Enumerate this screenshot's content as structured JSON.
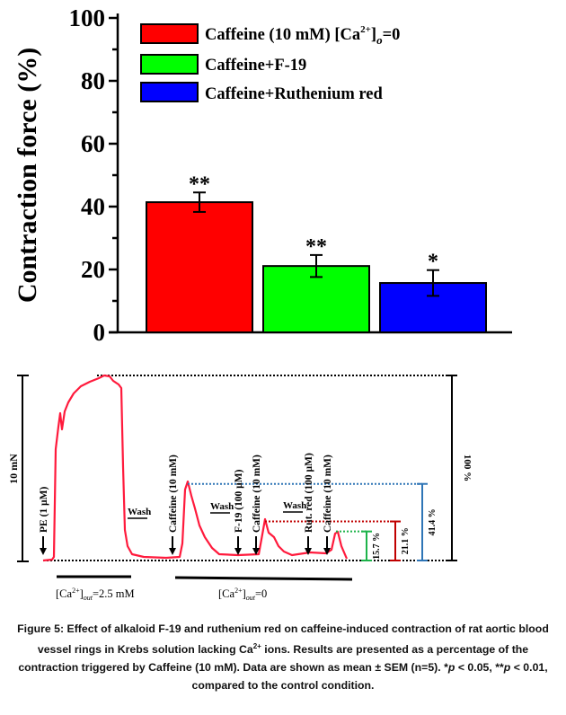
{
  "chart_data": [
    {
      "type": "bar",
      "ylabel": "Contraction force (%)",
      "ylim": [
        0,
        100
      ],
      "yticks": [
        "0",
        "20",
        "40",
        "60",
        "80",
        "100"
      ],
      "legend_position": "top-right",
      "series": [
        {
          "name": "Caffeine (10 mM) [Ca2+]o=0",
          "value": 41.4,
          "error": 3.1,
          "significance": "**",
          "color": "#ff0000"
        },
        {
          "name": "Caffeine+F-19",
          "value": 21.1,
          "error": 3.5,
          "significance": "**",
          "color": "#00ff00"
        },
        {
          "name": "Caffeine+Ruthenium red",
          "value": 15.7,
          "error": 4.1,
          "significance": "*",
          "color": "#0000ff"
        }
      ],
      "legend_text": {
        "l1_main": "Caffeine (10 mM) [Ca",
        "l1_sup": "2+",
        "l1_close": "]",
        "l1_sub": "o",
        "l1_end": "=0",
        "l2": "Caffeine+F-19",
        "l3": "Caffeine+Ruthenium red"
      }
    },
    {
      "type": "line",
      "trace_color": "#ff1a3c",
      "scale_bar_label": "10 mN",
      "full_scale_label": "100 %",
      "events": [
        "PE (1 µM)",
        "Caffeine (10 mM)",
        "F-19 (100 µM)",
        "Caffeine (10 mM)",
        "Rut. red (100 µM)",
        "Caffeine (10 mM)"
      ],
      "wash_label": "Wash",
      "measurements": [
        {
          "label": "15.7 %",
          "value": 15.7,
          "color": "#1db34a"
        },
        {
          "label": "21.1 %",
          "value": 21.1,
          "color": "#c00000"
        },
        {
          "label": "41.4 %",
          "value": 41.4,
          "color": "#2e75b6"
        }
      ],
      "periods": [
        {
          "pre": "[Ca",
          "sup": "2+",
          "mid": "]",
          "sub": "out",
          "post": "=2.5 mM"
        },
        {
          "pre": "[Ca",
          "sup": "2+",
          "mid": "]",
          "sub": "out",
          "post": "=0"
        }
      ]
    }
  ],
  "caption": {
    "text1": "Figure 5: Effect of alkaloid F-19 and ruthenium red on caffeine-induced contraction of rat aortic blood vessel rings in Krebs solution lacking Ca",
    "sup": "2+",
    "text2": " ions. Results are presented as a percentage of the contraction triggered by Caffeine (10 mM). Data are shown as mean ± SEM (n=5). *",
    "p1": "p",
    "text3": " < 0.05, **",
    "p2": "p",
    "text4": " < 0.01, compared to the control condition."
  }
}
